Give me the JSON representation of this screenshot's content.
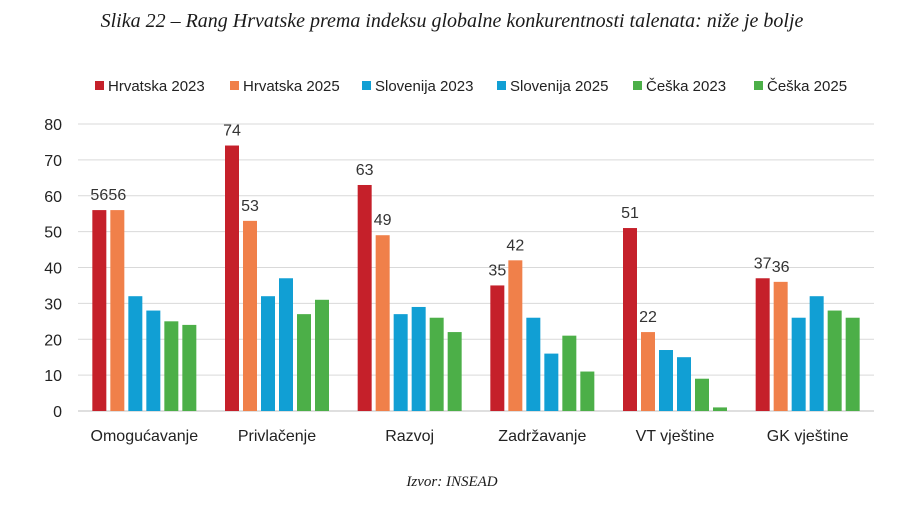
{
  "chart_data": {
    "type": "bar",
    "title": "Slika 22 – Rang Hrvatske prema indeksu globalne konkurentnosti talenata: niže je bolje",
    "source": "Izvor: INSEAD",
    "xlabel": "",
    "ylabel": "",
    "ylim": [
      0,
      80
    ],
    "yticks": [
      0,
      10,
      20,
      30,
      40,
      50,
      60,
      70,
      80
    ],
    "grid": true,
    "legend_position": "top",
    "categories": [
      "Omogućavanje",
      "Privlačenje",
      "Razvoj",
      "Zadržavanje",
      "VT vještine",
      "GK vještine"
    ],
    "series": [
      {
        "name": "Hrvatska 2023",
        "color": "#c5202a",
        "values": [
          56,
          74,
          63,
          35,
          51,
          37
        ],
        "labeled": true
      },
      {
        "name": "Hrvatska 2025",
        "color": "#f0804a",
        "values": [
          56,
          53,
          49,
          42,
          22,
          36
        ],
        "labeled": true
      },
      {
        "name": "Slovenija 2023",
        "color": "#119fd4",
        "values": [
          32,
          32,
          27,
          26,
          17,
          26
        ],
        "labeled": false
      },
      {
        "name": "Slovenija 2025",
        "color": "#119fd4",
        "values": [
          28,
          37,
          29,
          16,
          15,
          32
        ],
        "labeled": false
      },
      {
        "name": "Češka 2023",
        "color": "#4caf48",
        "values": [
          25,
          27,
          26,
          21,
          9,
          28
        ],
        "labeled": false
      },
      {
        "name": "Češka 2025",
        "color": "#4caf48",
        "values": [
          24,
          31,
          22,
          11,
          1,
          26
        ],
        "labeled": false
      }
    ]
  }
}
